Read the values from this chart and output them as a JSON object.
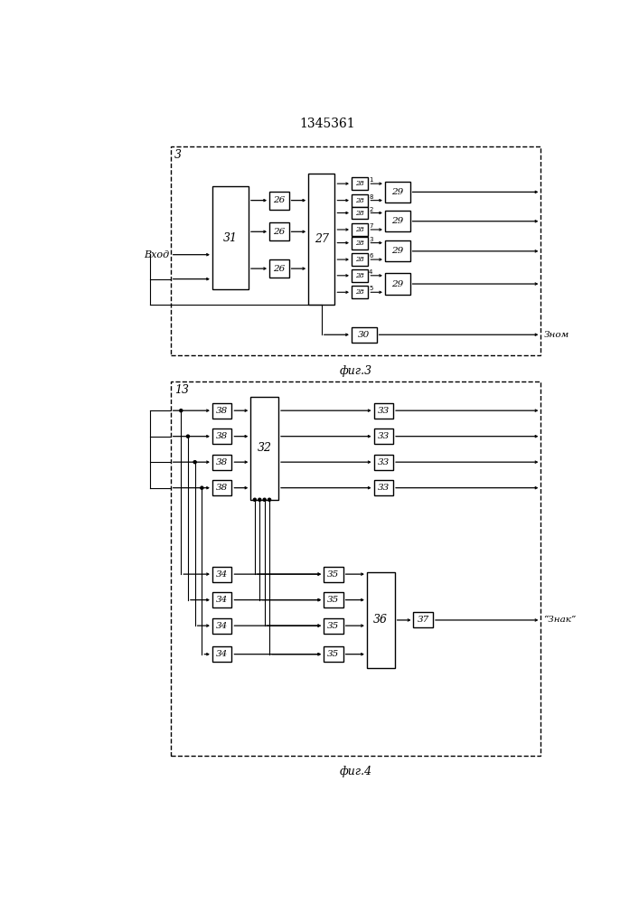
{
  "title": "1345361",
  "fig3_label": "3",
  "fig4_label": "13",
  "fig3_caption": "фиг.3",
  "fig4_caption": "фиг.4",
  "bg_color": "#ffffff",
  "line_color": "#000000",
  "box_color": "#ffffff",
  "text_color": "#000000"
}
